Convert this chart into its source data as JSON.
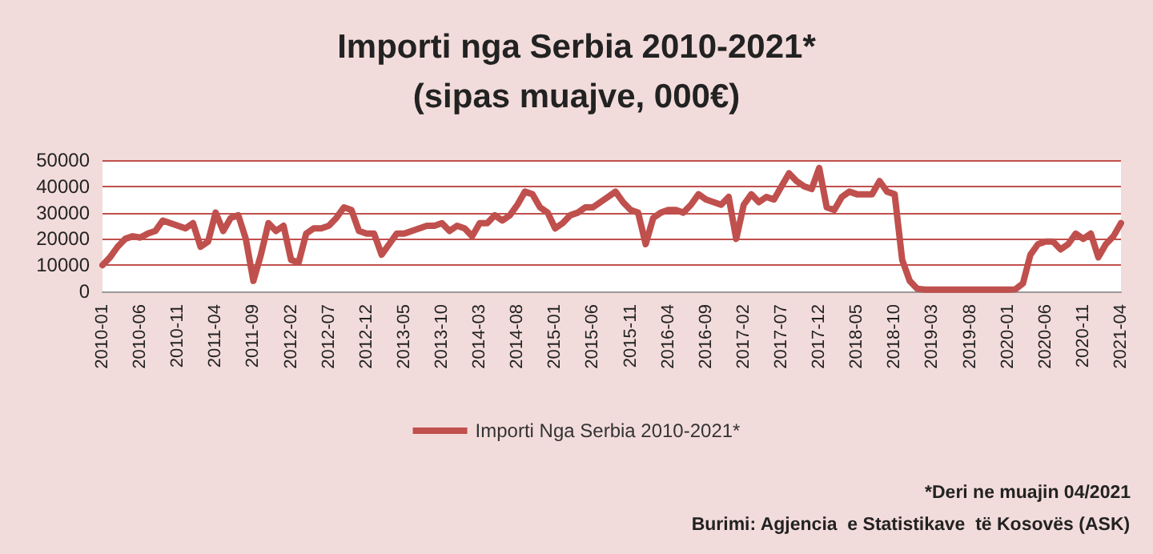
{
  "chart_data": {
    "type": "line",
    "title": "Importi nga Serbia 2010-2021*",
    "subtitle": "(sipas muajve, 000€)",
    "categories": [
      "2010-01",
      null,
      null,
      null,
      null,
      "2010-06",
      null,
      null,
      null,
      null,
      "2010-11",
      null,
      null,
      null,
      null,
      "2011-04",
      null,
      null,
      null,
      null,
      "2011-09",
      null,
      null,
      null,
      null,
      "2012-02",
      null,
      null,
      null,
      null,
      "2012-07",
      null,
      null,
      null,
      null,
      "2012-12",
      null,
      null,
      null,
      null,
      "2013-05",
      null,
      null,
      null,
      null,
      "2013-10",
      null,
      null,
      null,
      null,
      "2014-03",
      null,
      null,
      null,
      null,
      "2014-08",
      null,
      null,
      null,
      null,
      "2015-01",
      null,
      null,
      null,
      null,
      "2015-06",
      null,
      null,
      null,
      null,
      "2015-11",
      null,
      null,
      null,
      null,
      "2016-04",
      null,
      null,
      null,
      null,
      "2016-09",
      null,
      null,
      null,
      null,
      "2017-02",
      null,
      null,
      null,
      null,
      "2017-07",
      null,
      null,
      null,
      null,
      "2017-12",
      null,
      null,
      null,
      null,
      "2018-05",
      null,
      null,
      null,
      null,
      "2018-10",
      null,
      null,
      null,
      null,
      "2019-03",
      null,
      null,
      null,
      null,
      "2019-08",
      null,
      null,
      null,
      null,
      "2020-01",
      null,
      null,
      null,
      null,
      "2020-06",
      null,
      null,
      null,
      null,
      "2020-11",
      null,
      null,
      null,
      null,
      "2021-04"
    ],
    "series": [
      {
        "name": "Importi Nga Serbia 2010-2021*",
        "color": "#c0504d",
        "values": [
          10000,
          13000,
          17000,
          20000,
          21000,
          20500,
          22000,
          23000,
          27000,
          26000,
          25000,
          24000,
          26000,
          17000,
          19000,
          30000,
          23000,
          28000,
          29000,
          20000,
          4000,
          14000,
          26000,
          23000,
          25000,
          12000,
          11000,
          22000,
          24000,
          24000,
          25000,
          28000,
          32000,
          31000,
          23000,
          22000,
          22000,
          14000,
          18000,
          22000,
          22000,
          23000,
          24000,
          25000,
          25000,
          26000,
          23000,
          25000,
          24000,
          21000,
          26000,
          26000,
          29000,
          27000,
          29000,
          33000,
          38000,
          37000,
          32000,
          30000,
          24000,
          26000,
          29000,
          30000,
          32000,
          32000,
          34000,
          36000,
          38000,
          34000,
          31000,
          30000,
          18000,
          28000,
          30000,
          31000,
          31000,
          30000,
          33000,
          37000,
          35000,
          34000,
          33000,
          36000,
          20000,
          33000,
          37000,
          34000,
          36000,
          35000,
          40000,
          45000,
          42000,
          40000,
          39000,
          47000,
          32000,
          31000,
          36000,
          38000,
          37000,
          37000,
          37000,
          42000,
          38000,
          37000,
          12000,
          4000,
          1000,
          700,
          700,
          700,
          700,
          700,
          700,
          700,
          700,
          700,
          700,
          700,
          700,
          800,
          3000,
          14000,
          18000,
          19000,
          19000,
          16000,
          18000,
          22000,
          20000,
          22000,
          13000,
          18000,
          21000,
          26000
        ]
      }
    ],
    "ylim": [
      0,
      50000
    ],
    "yticks": [
      0,
      10000,
      20000,
      30000,
      40000,
      50000
    ],
    "grid": "y",
    "legend": "bottom",
    "marker": "none",
    "line_style": "solid",
    "annotations": [
      "*Deri ne muajin 04/2021",
      "Burimi: Agjencia  e Statistikave  të Kosovës (ASK)"
    ]
  }
}
